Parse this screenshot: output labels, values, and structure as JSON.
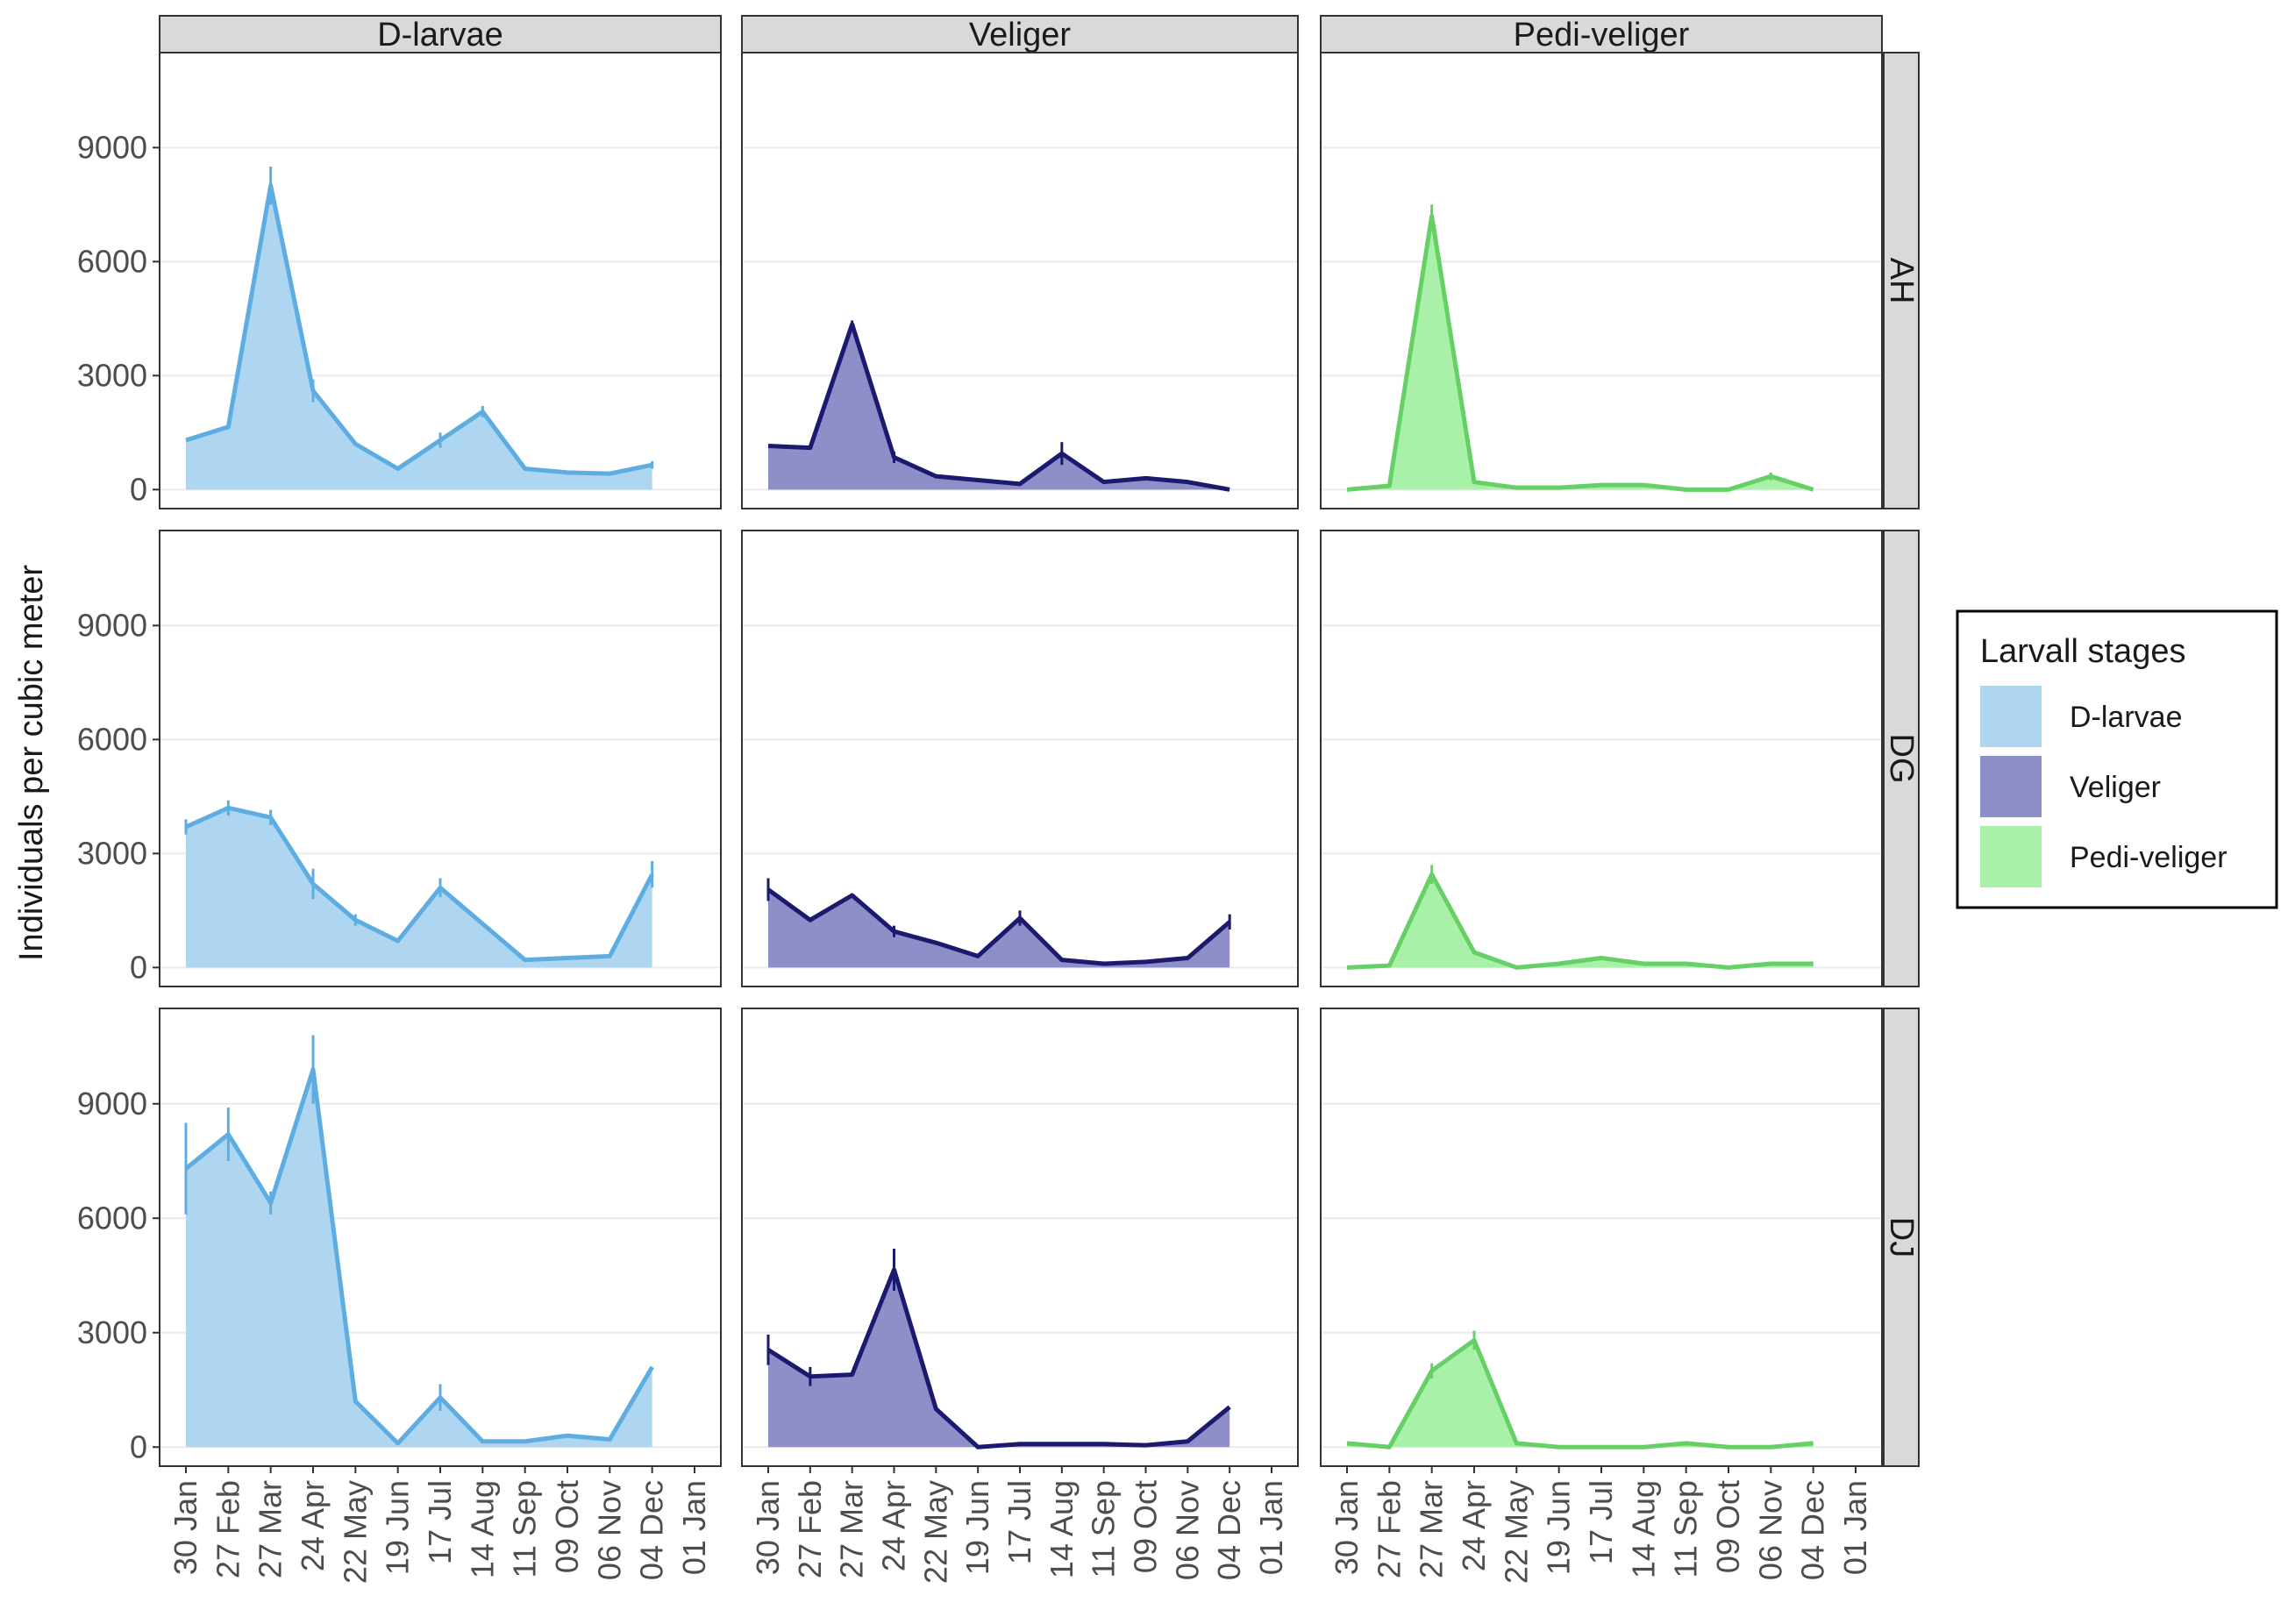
{
  "chart_data": {
    "type": "area",
    "facet_columns": [
      "D-larvae",
      "Veliger",
      "Pedi-veliger"
    ],
    "facet_rows": [
      "AH",
      "DG",
      "DJ"
    ],
    "x_tick_labels": [
      "30 Jan",
      "27 Feb",
      "27 Mar",
      "24 Apr",
      "22 May",
      "19 Jun",
      "17 Jul",
      "14 Aug",
      "11 Sep",
      "09 Oct",
      "06 Nov",
      "04 Dec",
      "01 Jan"
    ],
    "ylabel": "Individuals per cubic meter",
    "y_ticks": [
      0,
      3000,
      6000,
      9000
    ],
    "ylim": [
      -500,
      11500
    ],
    "legend": {
      "title": "Larvall stages",
      "position": "right",
      "entries": [
        "D-larvae",
        "Veliger",
        "Pedi-veliger"
      ]
    },
    "grid": true,
    "colors": {
      "D-larvae": {
        "fill": "#aed6f1",
        "line": "#5dade2"
      },
      "Veliger": {
        "fill": "#8e8ec9",
        "line": "#1c1a6e"
      },
      "Pedi-veliger": {
        "fill": "#a9f0a9",
        "line": "#66d066"
      }
    },
    "panels": [
      {
        "row": "AH",
        "stage": "D-larvae",
        "values": [
          1300,
          1650,
          8000,
          2600,
          1200,
          550,
          1300,
          2050,
          550,
          450,
          420,
          650
        ],
        "errors": [
          0,
          0,
          500,
          300,
          0,
          0,
          200,
          150,
          0,
          0,
          0,
          100
        ]
      },
      {
        "row": "AH",
        "stage": "Veliger",
        "values": [
          1150,
          1100,
          4350,
          850,
          350,
          250,
          150,
          950,
          200,
          300,
          200,
          0
        ],
        "errors": [
          0,
          0,
          100,
          150,
          0,
          0,
          0,
          300,
          0,
          0,
          0,
          0
        ]
      },
      {
        "row": "AH",
        "stage": "Pedi-veliger",
        "values": [
          0,
          100,
          7200,
          200,
          50,
          50,
          120,
          120,
          0,
          0,
          350,
          0
        ],
        "errors": [
          0,
          0,
          300,
          0,
          0,
          0,
          0,
          0,
          0,
          0,
          100,
          0
        ]
      },
      {
        "row": "DG",
        "stage": "D-larvae",
        "values": [
          3700,
          4200,
          3950,
          2200,
          1250,
          700,
          2100,
          1150,
          200,
          250,
          300,
          2450
        ],
        "errors": [
          200,
          200,
          200,
          400,
          150,
          0,
          250,
          0,
          0,
          0,
          0,
          350
        ]
      },
      {
        "row": "DG",
        "stage": "Veliger",
        "values": [
          2050,
          1250,
          1900,
          950,
          650,
          300,
          1300,
          200,
          100,
          150,
          250,
          1200
        ],
        "errors": [
          300,
          0,
          0,
          150,
          0,
          0,
          200,
          0,
          0,
          0,
          0,
          200
        ]
      },
      {
        "row": "DG",
        "stage": "Pedi-veliger",
        "values": [
          0,
          50,
          2450,
          400,
          0,
          100,
          250,
          100,
          100,
          0,
          100,
          100
        ],
        "errors": [
          0,
          0,
          250,
          0,
          0,
          0,
          0,
          0,
          0,
          0,
          0,
          0
        ]
      },
      {
        "row": "DJ",
        "stage": "D-larvae",
        "values": [
          7300,
          8200,
          6400,
          9900,
          1200,
          100,
          1300,
          150,
          150,
          300,
          200,
          2100
        ],
        "errors": [
          1200,
          700,
          300,
          900,
          0,
          0,
          350,
          0,
          0,
          0,
          0,
          0
        ]
      },
      {
        "row": "DJ",
        "stage": "Veliger",
        "values": [
          2550,
          1850,
          1900,
          4650,
          1000,
          0,
          80,
          80,
          80,
          50,
          150,
          1050
        ],
        "errors": [
          400,
          250,
          0,
          550,
          0,
          0,
          0,
          0,
          0,
          0,
          0,
          0
        ]
      },
      {
        "row": "DJ",
        "stage": "Pedi-veliger",
        "values": [
          100,
          0,
          2000,
          2800,
          100,
          0,
          0,
          0,
          100,
          0,
          0,
          100
        ],
        "errors": [
          0,
          0,
          200,
          250,
          0,
          0,
          0,
          0,
          0,
          0,
          0,
          0
        ]
      }
    ]
  }
}
